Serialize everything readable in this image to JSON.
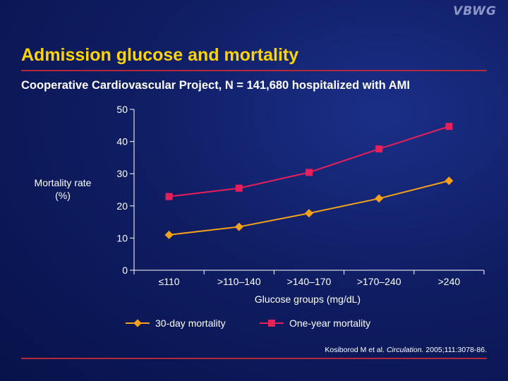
{
  "logo": "VBWG",
  "title": "Admission glucose and mortality",
  "subtitle": "Cooperative Cardiovascular Project, N = 141,680 hospitalized with AMI",
  "citation": {
    "authors": "Kosiborod M et al.",
    "journal": "Circulation.",
    "details": "2005;111:3078-86."
  },
  "colors": {
    "title": "#ffd400",
    "rule": "#b02a3a",
    "series_30day": "#f5a21a",
    "series_1year": "#e8205a"
  },
  "chart_data": {
    "type": "line",
    "xlabel": "Glucose groups (mg/dL)",
    "ylabel": "Mortality rate (%)",
    "ylabel_lines": [
      "Mortality rate",
      "(%)"
    ],
    "ylim": [
      0,
      50
    ],
    "yticks": [
      0,
      10,
      20,
      30,
      40,
      50
    ],
    "categories": [
      "≤110",
      ">110–140",
      ">140–170",
      ">170–240",
      ">240"
    ],
    "series": [
      {
        "name": "30-day mortality",
        "color": "#f5a21a",
        "marker": "diamond",
        "values": [
          11,
          13.5,
          17.7,
          22.3,
          27.8
        ]
      },
      {
        "name": "One-year mortality",
        "color": "#e8205a",
        "marker": "square",
        "values": [
          22.9,
          25.5,
          30.4,
          37.7,
          44.7
        ]
      }
    ],
    "legend_position": "bottom",
    "grid": false
  }
}
